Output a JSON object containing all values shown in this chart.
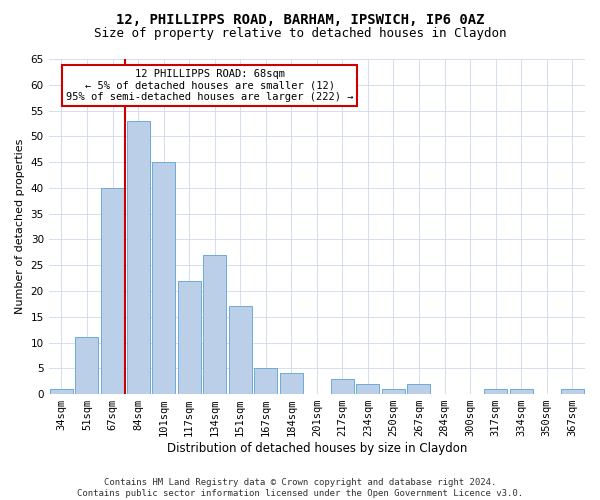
{
  "title1": "12, PHILLIPPS ROAD, BARHAM, IPSWICH, IP6 0AZ",
  "title2": "Size of property relative to detached houses in Claydon",
  "xlabel": "Distribution of detached houses by size in Claydon",
  "ylabel": "Number of detached properties",
  "categories": [
    "34sqm",
    "51sqm",
    "67sqm",
    "84sqm",
    "101sqm",
    "117sqm",
    "134sqm",
    "151sqm",
    "167sqm",
    "184sqm",
    "201sqm",
    "217sqm",
    "234sqm",
    "250sqm",
    "267sqm",
    "284sqm",
    "300sqm",
    "317sqm",
    "334sqm",
    "350sqm",
    "367sqm"
  ],
  "values": [
    1,
    11,
    40,
    53,
    45,
    22,
    27,
    17,
    5,
    4,
    0,
    3,
    2,
    1,
    2,
    0,
    0,
    1,
    1,
    0,
    1
  ],
  "bar_color": "#BBCFE8",
  "bar_edge_color": "#6BACD6",
  "vline_color": "#CC0000",
  "annotation_text": "12 PHILLIPPS ROAD: 68sqm\n← 5% of detached houses are smaller (12)\n95% of semi-detached houses are larger (222) →",
  "annotation_box_color": "#ffffff",
  "annotation_box_edge": "#CC0000",
  "ylim": [
    0,
    65
  ],
  "yticks": [
    0,
    5,
    10,
    15,
    20,
    25,
    30,
    35,
    40,
    45,
    50,
    55,
    60,
    65
  ],
  "grid_color": "#D0D8EC",
  "footnote": "Contains HM Land Registry data © Crown copyright and database right 2024.\nContains public sector information licensed under the Open Government Licence v3.0.",
  "title1_fontsize": 10,
  "title2_fontsize": 9,
  "xlabel_fontsize": 8.5,
  "ylabel_fontsize": 8,
  "tick_fontsize": 7.5,
  "annotation_fontsize": 7.5,
  "footnote_fontsize": 6.5
}
